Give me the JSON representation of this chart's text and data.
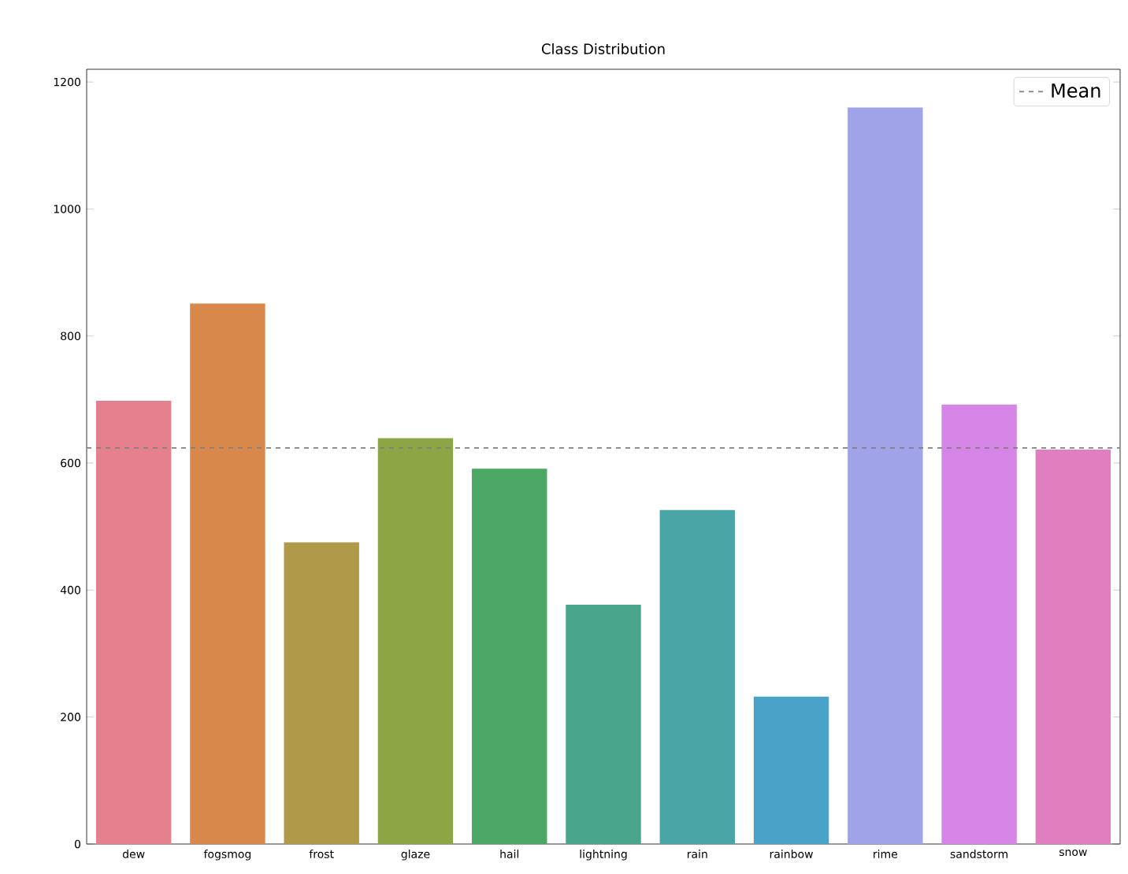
{
  "chart_data": {
    "type": "bar",
    "title": "Class Distribution",
    "categories": [
      "dew",
      "fogsmog",
      "frost",
      "glaze",
      "hail",
      "lightning",
      "rain",
      "rainbow",
      "rime",
      "sandstorm",
      "snow"
    ],
    "values": [
      698,
      851,
      475,
      639,
      591,
      377,
      526,
      232,
      1160,
      692,
      621
    ],
    "colors": [
      "#e5808f",
      "#d8884a",
      "#b09a4a",
      "#8da545",
      "#4aa864",
      "#4aa58d",
      "#4aa5a6",
      "#4aa2c8",
      "#a0a3e8",
      "#d485e5",
      "#e07ebf"
    ],
    "ylim": [
      0,
      1220
    ],
    "yticks": [
      0,
      200,
      400,
      600,
      800,
      1000,
      1200
    ],
    "ref_lines": [
      {
        "axis": "y",
        "value": 623.8,
        "label": "Mean",
        "color": "#808080",
        "line_style": "dashed"
      }
    ],
    "legend": "top right"
  }
}
